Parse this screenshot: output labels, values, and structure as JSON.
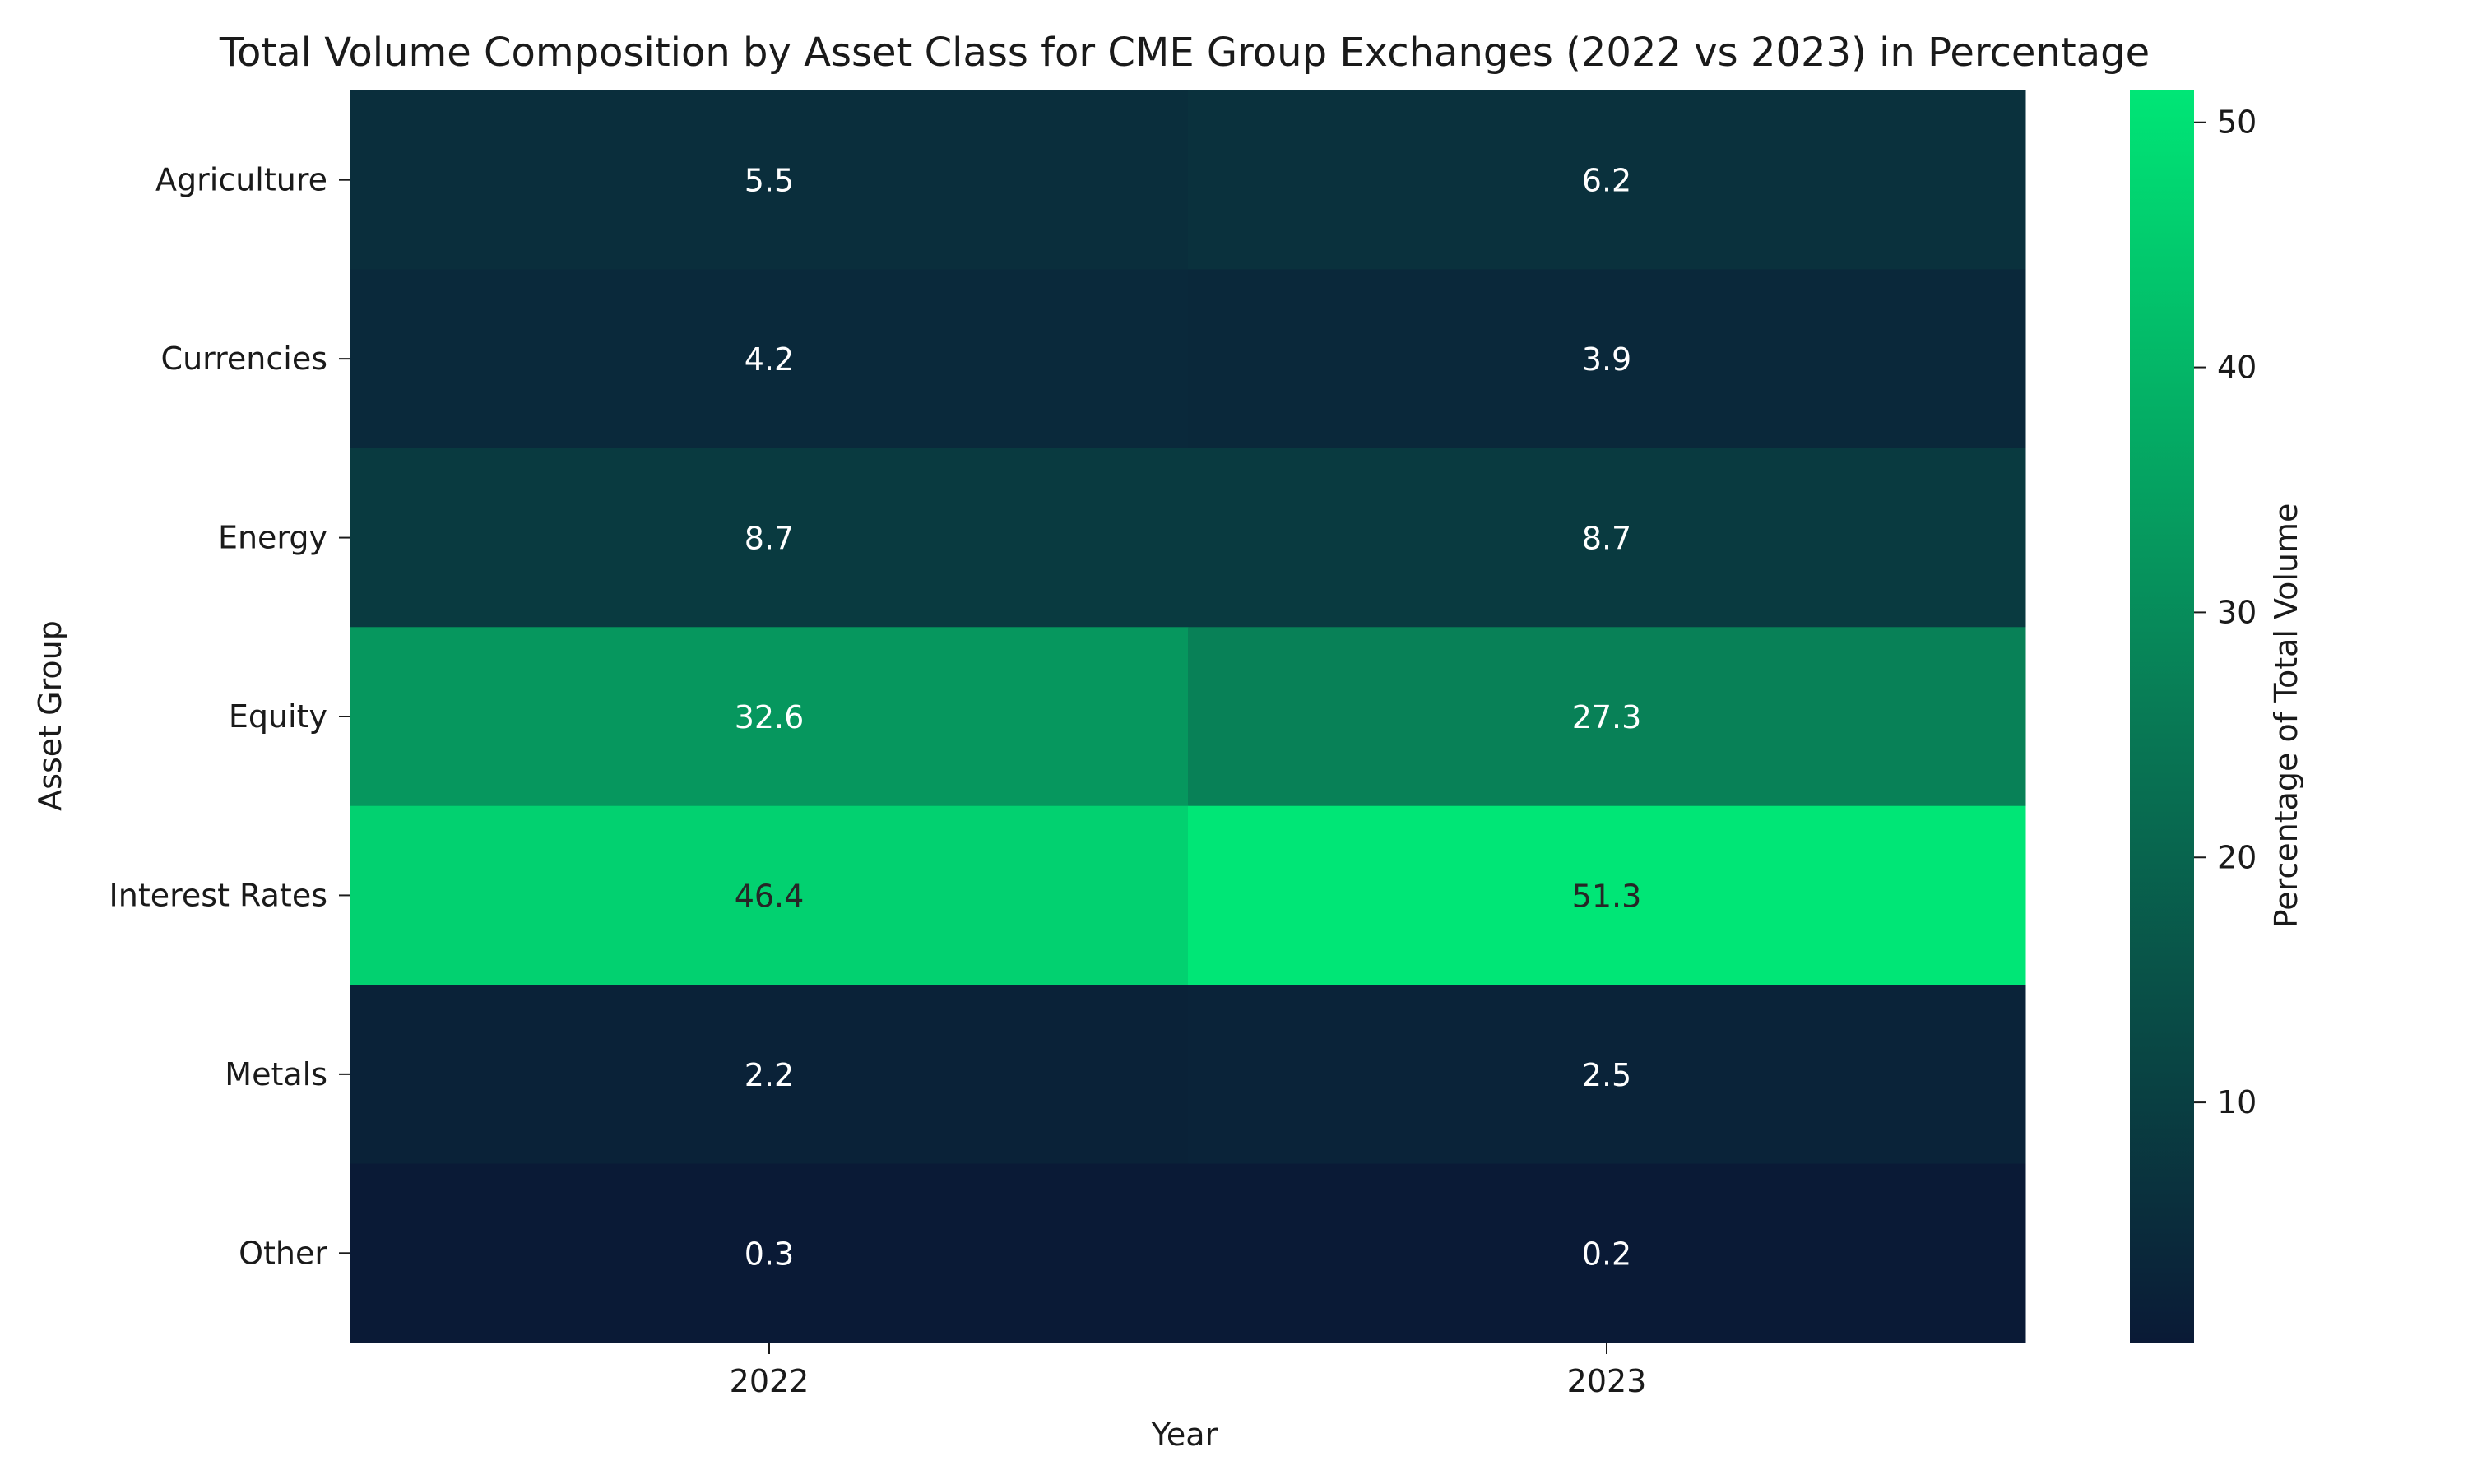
{
  "chart_data": {
    "type": "heatmap",
    "title": "Total Volume Composition by Asset Class for CME Group Exchanges (2022 vs 2023) in Percentage",
    "xlabel": "Year",
    "ylabel": "Asset Group",
    "x": [
      "2022",
      "2023"
    ],
    "y": [
      "Agriculture",
      "Currencies",
      "Energy",
      "Equity",
      "Interest Rates",
      "Metals",
      "Other"
    ],
    "values": [
      [
        5.5,
        6.2
      ],
      [
        4.2,
        3.9
      ],
      [
        8.7,
        8.7
      ],
      [
        32.6,
        27.3
      ],
      [
        46.4,
        51.3
      ],
      [
        2.2,
        2.5
      ],
      [
        0.3,
        0.2
      ]
    ],
    "annotations": [
      "5.5",
      "6.2",
      "4.2",
      "3.9",
      "8.7",
      "8.7",
      "32.6",
      "27.3",
      "46.4",
      "51.3",
      "2.2",
      "2.5",
      "0.3",
      "0.2"
    ],
    "colorbar": {
      "label": "Percentage of Total Volume",
      "ticks": [
        "10",
        "20",
        "30",
        "40",
        "50"
      ],
      "range": [
        0.2,
        51.3
      ],
      "color_low": "#0a1a36",
      "color_high": "#00e676"
    },
    "grid": false
  }
}
